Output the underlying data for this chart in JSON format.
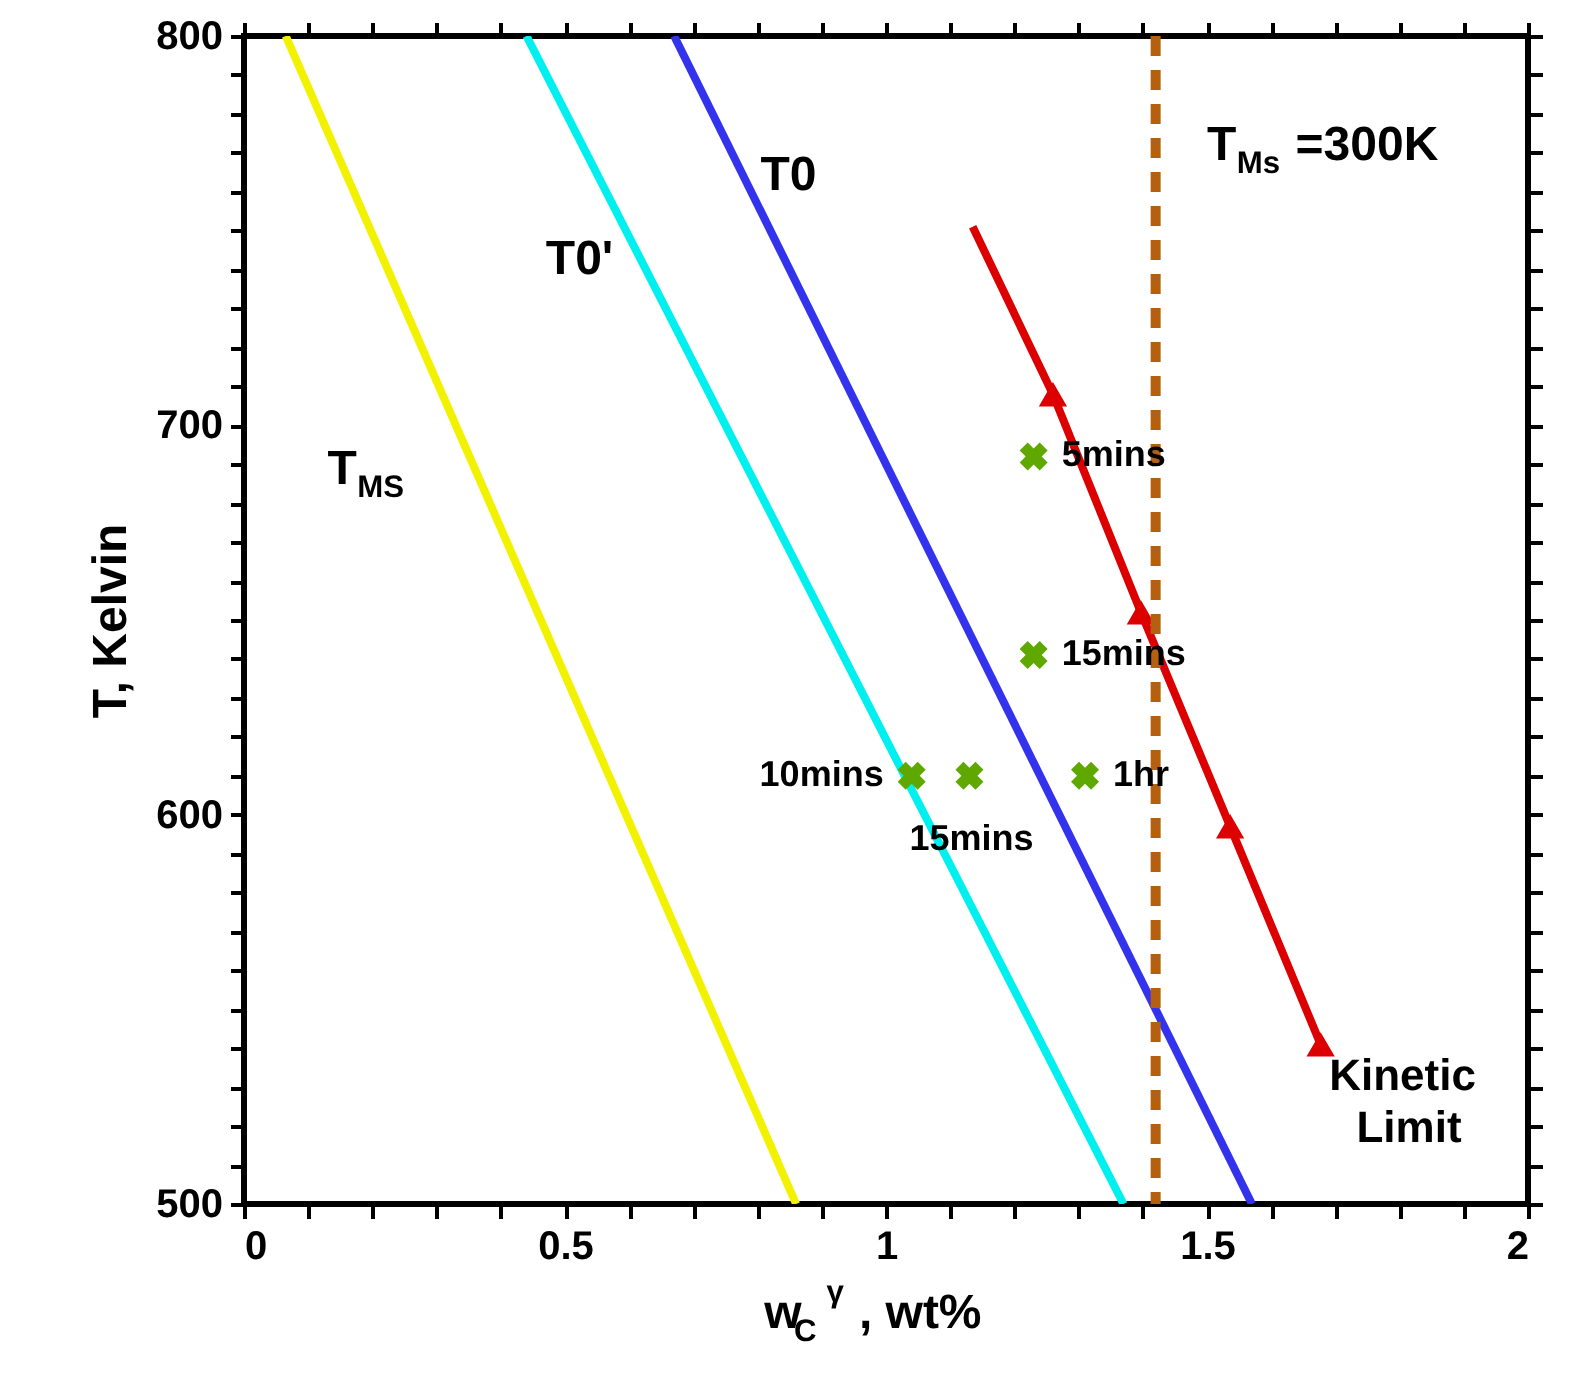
{
  "chart_data": {
    "type": "line",
    "xlabel": "w$_{C}$$^{γ}$, wt%",
    "ylabel": "T, Kelvin",
    "xlim": [
      0,
      2
    ],
    "ylim": [
      500,
      800
    ],
    "xticks": [
      0,
      {
        "value": 0.1,
        "label": null
      },
      {
        "value": 0.2,
        "label": null
      },
      {
        "value": 0.3,
        "label": null
      },
      {
        "value": 0.4,
        "label": null
      },
      0.5,
      {
        "value": 0.6,
        "label": null
      },
      {
        "value": 0.7,
        "label": null
      },
      {
        "value": 0.8,
        "label": null
      },
      {
        "value": 0.9,
        "label": null
      },
      1,
      {
        "value": 1.1,
        "label": null
      },
      {
        "value": 1.2,
        "label": null
      },
      {
        "value": 1.3,
        "label": null
      },
      {
        "value": 1.4,
        "label": null
      },
      1.5,
      {
        "value": 1.6,
        "label": null
      },
      {
        "value": 1.7,
        "label": null
      },
      {
        "value": 1.8,
        "label": null
      },
      {
        "value": 1.9,
        "label": null
      },
      2
    ],
    "yticks": [
      500,
      {
        "value": 510,
        "label": null
      },
      {
        "value": 520,
        "label": null
      },
      {
        "value": 530,
        "label": null
      },
      {
        "value": 540,
        "label": null
      },
      {
        "value": 550,
        "label": null
      },
      {
        "value": 560,
        "label": null
      },
      {
        "value": 570,
        "label": null
      },
      {
        "value": 580,
        "label": null
      },
      {
        "value": 590,
        "label": null
      },
      600,
      {
        "value": 610,
        "label": null
      },
      {
        "value": 620,
        "label": null
      },
      {
        "value": 630,
        "label": null
      },
      {
        "value": 640,
        "label": null
      },
      {
        "value": 650,
        "label": null
      },
      {
        "value": 660,
        "label": null
      },
      {
        "value": 670,
        "label": null
      },
      {
        "value": 680,
        "label": null
      },
      {
        "value": 690,
        "label": null
      },
      700,
      {
        "value": 710,
        "label": null
      },
      {
        "value": 720,
        "label": null
      },
      {
        "value": 730,
        "label": null
      },
      {
        "value": 740,
        "label": null
      },
      {
        "value": 750,
        "label": null
      },
      {
        "value": 760,
        "label": null
      },
      {
        "value": 770,
        "label": null
      },
      {
        "value": 780,
        "label": null
      },
      {
        "value": 790,
        "label": null
      },
      800
    ],
    "grid": false,
    "legend": false,
    "marker": "none",
    "line_style": "solid",
    "series": [
      {
        "name": "T$_{MS}$",
        "color": "#f2f200",
        "x": [
          0.065,
          0.86
        ],
        "values": [
          800,
          500
        ]
      },
      {
        "name": "T0'",
        "color": "#00f0f0",
        "x": [
          0.44,
          1.37
        ],
        "values": [
          800,
          500
        ]
      },
      {
        "name": "T0",
        "color": "#3333ee",
        "x": [
          0.67,
          1.57
        ],
        "values": [
          800,
          500
        ]
      },
      {
        "name": "Kinetic Limit",
        "color": "#dd0000",
        "x": [
          1.135,
          1.26,
          1.397,
          1.536,
          1.677
        ],
        "values": [
          751,
          708,
          652,
          597,
          541
        ]
      },
      {
        "type": "scatter",
        "marker": "triangle",
        "color": "#dd0000",
        "x": [
          1.26,
          1.397,
          1.536,
          1.677
        ],
        "values": [
          708,
          652,
          597,
          541
        ]
      },
      {
        "type": "scatter",
        "marker": "cross",
        "color": "#5fa800",
        "x": [
          1.23,
          1.23,
          1.04,
          1.13,
          1.31
        ],
        "values": [
          692,
          641,
          610,
          610,
          610
        ]
      }
    ],
    "ref_lines": [
      {
        "axis": "x",
        "value": 1.42,
        "color": "#b5600f",
        "line_style": "dashed"
      }
    ],
    "annotations": [
      "T$_{Ms}$=300K",
      {
        "text": "5mins",
        "x": 1.23,
        "y": 692
      },
      {
        "text": "15mins",
        "x": 1.23,
        "y": 641
      },
      {
        "text": "10mins",
        "x": 1.04,
        "y": 610
      },
      {
        "text": "15mins",
        "x": 1.13,
        "y": 610
      },
      {
        "text": "1hr",
        "x": 1.31,
        "y": 610
      }
    ]
  }
}
